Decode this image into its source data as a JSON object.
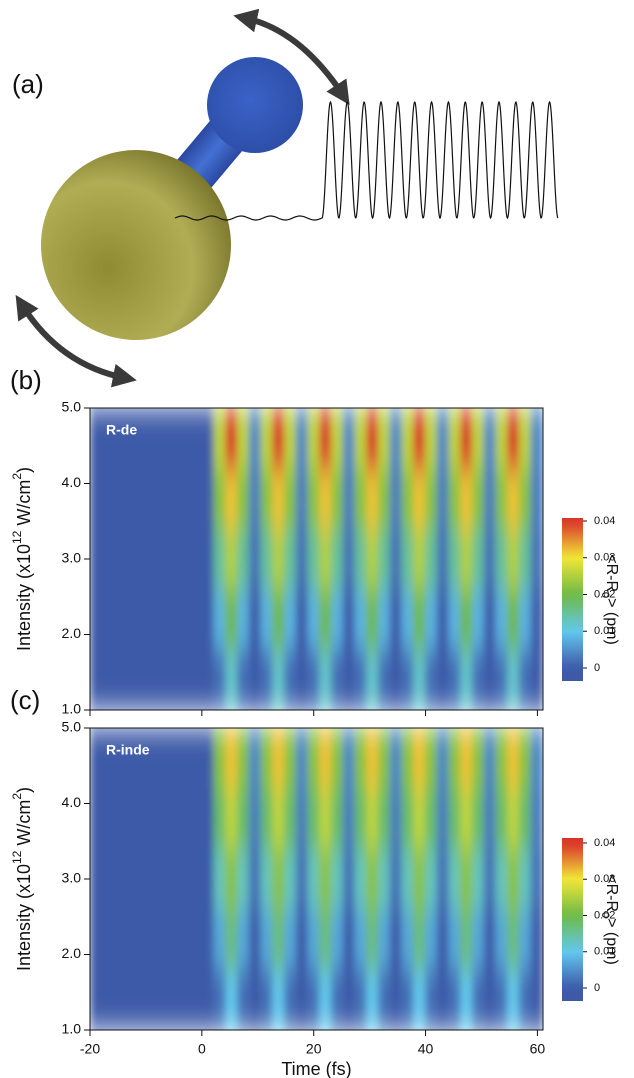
{
  "panel_a": {
    "label": "(a)"
  },
  "chart_data": [
    {
      "type": "heatmap",
      "panel_label": "(b)",
      "annotation": "R-de",
      "y_label": [
        "Intensity (x10",
        "12",
        " W/cm",
        "2",
        ")"
      ],
      "colorbar_label": [
        "<R-R",
        "0",
        "> (pm)"
      ],
      "x": [
        -20,
        0,
        2.1,
        4.2,
        6.3,
        8.4,
        10.5,
        12.6,
        14.7,
        16.8,
        18.9,
        21,
        23.1,
        25.2,
        27.3,
        29.4,
        31.5,
        33.6,
        35.7,
        37.8,
        39.9,
        42,
        44.1,
        46.2,
        48.3,
        50.4,
        52.5,
        54.6,
        56.7,
        58.8,
        61
      ],
      "y": [
        1,
        1.8,
        2.6,
        3.4,
        4.2,
        5
      ],
      "z": [
        [
          0,
          0,
          0.002,
          0.012,
          0.002,
          0,
          0.002,
          0.012,
          0.002,
          0,
          0.002,
          0.012,
          0.002,
          0,
          0.002,
          0.012,
          0.002,
          0,
          0.002,
          0.012,
          0.002,
          0,
          0.002,
          0.012,
          0.002,
          0,
          0.002,
          0.012,
          0.002,
          0
        ],
        [
          0,
          0,
          0.008,
          0.02,
          0.008,
          0,
          0.008,
          0.02,
          0.008,
          0,
          0.008,
          0.02,
          0.008,
          0,
          0.008,
          0.02,
          0.008,
          0,
          0.008,
          0.02,
          0.008,
          0,
          0.008,
          0.02,
          0.008,
          0,
          0.008,
          0.02,
          0.008,
          0
        ],
        [
          0,
          0,
          0.015,
          0.025,
          0.015,
          0.002,
          0.015,
          0.025,
          0.015,
          0.002,
          0.015,
          0.025,
          0.015,
          0.002,
          0.015,
          0.025,
          0.015,
          0.002,
          0.015,
          0.025,
          0.015,
          0.002,
          0.015,
          0.025,
          0.015,
          0.002,
          0.015,
          0.025,
          0.015,
          0.002
        ],
        [
          0,
          0,
          0.022,
          0.032,
          0.022,
          0.003,
          0.022,
          0.032,
          0.022,
          0.003,
          0.022,
          0.032,
          0.022,
          0.003,
          0.022,
          0.032,
          0.022,
          0.003,
          0.022,
          0.032,
          0.022,
          0.003,
          0.022,
          0.032,
          0.022,
          0.003,
          0.022,
          0.032,
          0.022,
          0.003
        ],
        [
          0,
          0,
          0.026,
          0.04,
          0.026,
          0.004,
          0.026,
          0.04,
          0.026,
          0.004,
          0.026,
          0.04,
          0.026,
          0.004,
          0.026,
          0.04,
          0.026,
          0.004,
          0.026,
          0.04,
          0.026,
          0.004,
          0.026,
          0.04,
          0.026,
          0.004,
          0.026,
          0.04,
          0.026,
          0.004
        ]
      ],
      "xlim": [
        -20,
        61
      ],
      "xticks": [
        -20,
        0,
        20,
        40,
        60
      ],
      "show_xtick_labels": false,
      "ylim": [
        1,
        5
      ],
      "yticks": [
        {
          "value": 1,
          "label": "1.0"
        },
        {
          "value": 2,
          "label": "2.0"
        },
        {
          "value": 3,
          "label": "3.0"
        },
        {
          "value": 4,
          "label": "4.0"
        },
        {
          "value": 5,
          "label": "5.0"
        }
      ],
      "clim": [
        0,
        0.04
      ],
      "cticks": [
        0,
        0.01,
        0.02,
        0.03,
        0.04
      ],
      "colormap": [
        "#3c5aa8",
        "#63c8ee",
        "#6dba45",
        "#f2e638",
        "#d8342a"
      ]
    },
    {
      "type": "heatmap",
      "panel_label": "(c)",
      "annotation": "R-inde",
      "y_label": [
        "Intensity (x10",
        "12",
        " W/cm",
        "2",
        ")"
      ],
      "colorbar_label": [
        "<R-R",
        "0",
        "> (pm)"
      ],
      "x_label": "Time (fs)",
      "x": [
        -20,
        0,
        2.1,
        4.2,
        6.3,
        8.4,
        10.5,
        12.6,
        14.7,
        16.8,
        18.9,
        21,
        23.1,
        25.2,
        27.3,
        29.4,
        31.5,
        33.6,
        35.7,
        37.8,
        39.9,
        42,
        44.1,
        46.2,
        48.3,
        50.4,
        52.5,
        54.6,
        56.7,
        58.8,
        61
      ],
      "y": [
        1,
        1.8,
        2.6,
        3.4,
        4.2,
        5
      ],
      "z": [
        [
          0,
          0,
          0.002,
          0.01,
          0.002,
          0,
          0.002,
          0.01,
          0.002,
          0,
          0.002,
          0.01,
          0.002,
          0,
          0.002,
          0.01,
          0.002,
          0,
          0.002,
          0.01,
          0.002,
          0,
          0.002,
          0.01,
          0.002,
          0,
          0.002,
          0.01,
          0.002,
          0
        ],
        [
          0,
          0,
          0.007,
          0.017,
          0.007,
          0,
          0.007,
          0.017,
          0.007,
          0,
          0.007,
          0.017,
          0.007,
          0,
          0.007,
          0.017,
          0.007,
          0,
          0.007,
          0.017,
          0.007,
          0,
          0.007,
          0.017,
          0.007,
          0,
          0.007,
          0.017,
          0.007,
          0
        ],
        [
          0,
          0,
          0.013,
          0.022,
          0.013,
          0.002,
          0.013,
          0.022,
          0.013,
          0.002,
          0.013,
          0.022,
          0.013,
          0.002,
          0.013,
          0.022,
          0.013,
          0.002,
          0.013,
          0.022,
          0.013,
          0.002,
          0.013,
          0.022,
          0.013,
          0.002,
          0.013,
          0.022,
          0.013,
          0.002
        ],
        [
          0,
          0,
          0.018,
          0.026,
          0.018,
          0.003,
          0.018,
          0.026,
          0.018,
          0.003,
          0.018,
          0.026,
          0.018,
          0.003,
          0.018,
          0.026,
          0.018,
          0.003,
          0.018,
          0.026,
          0.018,
          0.003,
          0.018,
          0.026,
          0.018,
          0.003,
          0.018,
          0.026,
          0.018,
          0.003
        ],
        [
          0,
          0,
          0.022,
          0.032,
          0.022,
          0.004,
          0.022,
          0.032,
          0.022,
          0.004,
          0.022,
          0.032,
          0.022,
          0.004,
          0.022,
          0.032,
          0.022,
          0.004,
          0.022,
          0.032,
          0.022,
          0.004,
          0.022,
          0.032,
          0.022,
          0.004,
          0.022,
          0.032,
          0.022,
          0.004
        ]
      ],
      "xlim": [
        -20,
        61
      ],
      "xticks": [
        -20,
        0,
        20,
        40,
        60
      ],
      "show_xtick_labels": true,
      "ylim": [
        1,
        5
      ],
      "yticks": [
        {
          "value": 1,
          "label": "1.0"
        },
        {
          "value": 2,
          "label": "2.0"
        },
        {
          "value": 3,
          "label": "3.0"
        },
        {
          "value": 4,
          "label": "4.0"
        },
        {
          "value": 5,
          "label": "5.0"
        }
      ],
      "clim": [
        0,
        0.04
      ],
      "cticks": [
        0,
        0.01,
        0.02,
        0.03,
        0.04
      ],
      "colormap": [
        "#3c5aa8",
        "#63c8ee",
        "#6dba45",
        "#f2e638",
        "#d8342a"
      ]
    }
  ]
}
